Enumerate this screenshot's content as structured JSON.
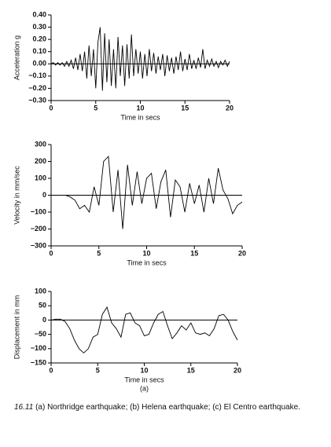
{
  "chart_data": [
    {
      "type": "line",
      "xlabel": "Time in secs",
      "ylabel": "Acceleration g",
      "color": "#000000",
      "zero_line": true,
      "xlim": [
        0,
        20
      ],
      "xticks": [
        0,
        5,
        10,
        15,
        20
      ],
      "ylim": [
        -0.3,
        0.4
      ],
      "yticks": [
        {
          "value": 0.4,
          "label": "0.40"
        },
        {
          "value": 0.3,
          "label": "0.30"
        },
        {
          "value": 0.2,
          "label": "0.20"
        },
        {
          "value": 0.1,
          "label": "0.10"
        },
        {
          "value": 0,
          "label": "0.00"
        },
        {
          "value": -0.1,
          "label": "−0.10"
        },
        {
          "value": -0.2,
          "label": "−0.20"
        },
        {
          "value": -0.3,
          "label": "−0.30"
        }
      ],
      "x": [
        0,
        0.25,
        0.5,
        0.75,
        1,
        1.25,
        1.5,
        1.75,
        2,
        2.25,
        2.5,
        2.75,
        3,
        3.25,
        3.5,
        3.75,
        4,
        4.25,
        4.5,
        4.75,
        5,
        5.25,
        5.5,
        5.75,
        6,
        6.25,
        6.5,
        6.75,
        7,
        7.25,
        7.5,
        7.75,
        8,
        8.25,
        8.5,
        8.75,
        9,
        9.25,
        9.5,
        9.75,
        10,
        10.25,
        10.5,
        10.75,
        11,
        11.25,
        11.5,
        11.75,
        12,
        12.25,
        12.5,
        12.75,
        13,
        13.25,
        13.5,
        13.75,
        14,
        14.25,
        14.5,
        14.75,
        15,
        15.25,
        15.5,
        15.75,
        16,
        16.25,
        16.5,
        16.75,
        17,
        17.25,
        17.5,
        17.75,
        18,
        18.25,
        18.5,
        18.75,
        19,
        19.25,
        19.5,
        19.75,
        20
      ],
      "values": [
        0,
        0.01,
        -0.01,
        0.01,
        -0.01,
        0.01,
        -0.02,
        0.02,
        -0.02,
        0.03,
        -0.04,
        0.05,
        -0.05,
        0.08,
        -0.06,
        0.1,
        -0.12,
        0.15,
        -0.1,
        0.12,
        -0.2,
        0.18,
        0.3,
        -0.22,
        0.25,
        -0.15,
        0.2,
        -0.18,
        0.12,
        -0.2,
        0.22,
        -0.1,
        0.15,
        -0.18,
        0.16,
        -0.12,
        0.24,
        -0.1,
        0.12,
        -0.08,
        0.1,
        -0.12,
        0.08,
        -0.1,
        0.12,
        -0.06,
        0.09,
        -0.08,
        0.06,
        -0.05,
        0.08,
        -0.1,
        0.07,
        -0.06,
        0.05,
        -0.08,
        0.06,
        -0.05,
        0.1,
        -0.06,
        0.04,
        -0.05,
        0.08,
        -0.04,
        0.03,
        -0.04,
        0.05,
        -0.03,
        0.12,
        -0.04,
        0.03,
        -0.02,
        0.04,
        -0.02,
        0.02,
        -0.03,
        0.02,
        -0.01,
        0.03,
        -0.02,
        0.02
      ]
    },
    {
      "type": "line",
      "xlabel": "Time in secs",
      "ylabel": "Velocity in mm/sec",
      "color": "#000000",
      "zero_line": true,
      "xlim": [
        0,
        20
      ],
      "xticks": [
        0,
        5,
        10,
        15,
        20
      ],
      "ylim": [
        -300,
        300
      ],
      "yticks": [
        300,
        200,
        100,
        0,
        {
          "value": -100,
          "label": "−100"
        },
        {
          "value": -200,
          "label": "−200"
        },
        {
          "value": -300,
          "label": "−300"
        }
      ],
      "x": [
        0,
        0.5,
        1,
        1.5,
        2,
        2.5,
        3,
        3.5,
        4,
        4.5,
        5,
        5.5,
        6,
        6.5,
        7,
        7.5,
        8,
        8.5,
        9,
        9.5,
        10,
        10.5,
        11,
        11.5,
        12,
        12.5,
        13,
        13.5,
        14,
        14.5,
        15,
        15.5,
        16,
        16.5,
        17,
        17.5,
        18,
        18.5,
        19,
        19.5,
        20
      ],
      "values": [
        0,
        0,
        0,
        0,
        -10,
        -30,
        -80,
        -60,
        -100,
        50,
        -60,
        200,
        230,
        -100,
        150,
        -200,
        180,
        -60,
        140,
        -50,
        100,
        130,
        -80,
        80,
        150,
        -130,
        90,
        50,
        -100,
        70,
        -50,
        60,
        -100,
        100,
        -50,
        160,
        30,
        -20,
        -110,
        -60,
        -40
      ]
    },
    {
      "type": "line",
      "xlabel": "Time in secs",
      "ylabel": "Displacement in mm",
      "annotation": "(a)",
      "color": "#000000",
      "zero_line": true,
      "xlim": [
        0,
        20
      ],
      "xticks": [
        0,
        5,
        10,
        15,
        20
      ],
      "ylim": [
        -150,
        100
      ],
      "yticks": [
        100,
        50,
        0,
        {
          "value": -50,
          "label": "−50"
        },
        {
          "value": -100,
          "label": "−100"
        },
        {
          "value": -150,
          "label": "−150"
        }
      ],
      "x": [
        0,
        0.5,
        1,
        1.5,
        2,
        2.5,
        3,
        3.5,
        4,
        4.5,
        5,
        5.5,
        6,
        6.5,
        7,
        7.5,
        8,
        8.5,
        9,
        9.5,
        10,
        10.5,
        11,
        11.5,
        12,
        12.5,
        13,
        13.5,
        14,
        14.5,
        15,
        15.5,
        16,
        16.5,
        17,
        17.5,
        18,
        18.5,
        19,
        19.5,
        20
      ],
      "values": [
        0,
        3,
        3,
        -5,
        -30,
        -70,
        -100,
        -115,
        -100,
        -60,
        -50,
        20,
        45,
        -10,
        -30,
        -60,
        20,
        25,
        -10,
        -20,
        -55,
        -50,
        -10,
        20,
        30,
        -20,
        -65,
        -45,
        -20,
        -35,
        -10,
        -45,
        -50,
        -45,
        -55,
        -30,
        15,
        20,
        0,
        -40,
        -70
      ]
    }
  ],
  "caption": {
    "number": "16.11",
    "text": "(a) Northridge earthquake; (b) Helena earthquake; (c) El Centro earthquake."
  }
}
